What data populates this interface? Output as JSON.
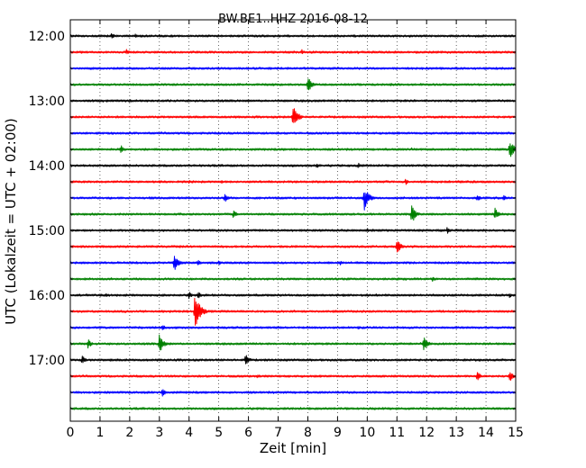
{
  "chart_data": {
    "type": "line",
    "title": "BW.BE1..HHZ 2016-08-12",
    "xlabel": "Zeit  [min]",
    "ylabel": "UTC (Lokalzeit = UTC + 02:00)",
    "xlim": [
      0,
      15
    ],
    "xticks": [
      "0",
      "1",
      "2",
      "3",
      "4",
      "5",
      "6",
      "7",
      "8",
      "9",
      "10",
      "11",
      "12",
      "13",
      "14",
      "15"
    ],
    "yticks": [
      "12:00",
      "13:00",
      "14:00",
      "15:00",
      "16:00",
      "17:00"
    ],
    "grid": "vertical dotted",
    "trace_colors": [
      "#000000",
      "#ff0000",
      "#0000ff",
      "#008000"
    ],
    "traces": [
      {
        "start": "12:00",
        "events": [
          {
            "x": 1.4,
            "amp": 0.4
          },
          {
            "x": 2.2,
            "amp": 0.25
          },
          {
            "x": 3.0,
            "amp": 0.2
          },
          {
            "x": 8.9,
            "amp": 0.2
          }
        ]
      },
      {
        "start": "12:15",
        "events": [
          {
            "x": 1.9,
            "amp": 0.35
          },
          {
            "x": 7.8,
            "amp": 0.3
          },
          {
            "x": 9.7,
            "amp": 0.2
          }
        ]
      },
      {
        "start": "12:30",
        "events": []
      },
      {
        "start": "12:45",
        "events": [
          {
            "x": 8.0,
            "amp": 1.0
          },
          {
            "x": 10.8,
            "amp": 0.2
          }
        ]
      },
      {
        "start": "13:00",
        "events": []
      },
      {
        "start": "13:15",
        "events": [
          {
            "x": 7.5,
            "amp": 1.4
          }
        ]
      },
      {
        "start": "13:30",
        "events": [
          {
            "x": 6.2,
            "amp": 0.15
          }
        ]
      },
      {
        "start": "13:45",
        "events": [
          {
            "x": 1.7,
            "amp": 0.55
          },
          {
            "x": 11.5,
            "amp": 0.2
          },
          {
            "x": 14.8,
            "amp": 1.2
          }
        ]
      },
      {
        "start": "14:00",
        "events": [
          {
            "x": 8.3,
            "amp": 0.35
          },
          {
            "x": 9.7,
            "amp": 0.3
          }
        ]
      },
      {
        "start": "14:15",
        "events": [
          {
            "x": 4.0,
            "amp": 0.2
          },
          {
            "x": 5.1,
            "amp": 0.25
          },
          {
            "x": 11.3,
            "amp": 0.35
          }
        ]
      },
      {
        "start": "14:30",
        "events": [
          {
            "x": 5.2,
            "amp": 0.55
          },
          {
            "x": 9.9,
            "amp": 1.4
          },
          {
            "x": 13.7,
            "amp": 0.45
          },
          {
            "x": 14.6,
            "amp": 0.35
          }
        ]
      },
      {
        "start": "14:45",
        "events": [
          {
            "x": 5.5,
            "amp": 0.55
          },
          {
            "x": 11.5,
            "amp": 1.1
          },
          {
            "x": 14.3,
            "amp": 0.75
          }
        ]
      },
      {
        "start": "15:00",
        "events": [
          {
            "x": 10.0,
            "amp": 0.25
          },
          {
            "x": 12.7,
            "amp": 0.4
          }
        ]
      },
      {
        "start": "15:15",
        "events": [
          {
            "x": 11.0,
            "amp": 0.9
          }
        ]
      },
      {
        "start": "15:30",
        "events": [
          {
            "x": 3.5,
            "amp": 1.1
          },
          {
            "x": 4.3,
            "amp": 0.35
          },
          {
            "x": 5.0,
            "amp": 0.3
          },
          {
            "x": 9.1,
            "amp": 0.25
          }
        ]
      },
      {
        "start": "15:45",
        "events": [
          {
            "x": 12.2,
            "amp": 0.35
          }
        ]
      },
      {
        "start": "16:00",
        "events": [
          {
            "x": 1.2,
            "amp": 0.25
          },
          {
            "x": 4.0,
            "amp": 0.4
          },
          {
            "x": 4.3,
            "amp": 0.45
          },
          {
            "x": 14.8,
            "amp": 0.3
          }
        ]
      },
      {
        "start": "16:15",
        "events": [
          {
            "x": 4.2,
            "amp": 1.9
          }
        ]
      },
      {
        "start": "16:30",
        "events": [
          {
            "x": 3.1,
            "amp": 0.4
          },
          {
            "x": 9.7,
            "amp": 0.2
          },
          {
            "x": 13.2,
            "amp": 0.2
          }
        ]
      },
      {
        "start": "16:45",
        "events": [
          {
            "x": 0.6,
            "amp": 0.55
          },
          {
            "x": 3.0,
            "amp": 1.1
          },
          {
            "x": 11.9,
            "amp": 0.95
          }
        ]
      },
      {
        "start": "17:00",
        "events": [
          {
            "x": 0.4,
            "amp": 0.55
          },
          {
            "x": 5.9,
            "amp": 0.75
          }
        ]
      },
      {
        "start": "17:15",
        "events": [
          {
            "x": 6.3,
            "amp": 0.25
          },
          {
            "x": 13.7,
            "amp": 0.6
          },
          {
            "x": 14.8,
            "amp": 0.65
          }
        ]
      },
      {
        "start": "17:30",
        "events": [
          {
            "x": 3.1,
            "amp": 0.55
          }
        ]
      },
      {
        "start": "17:45",
        "events": [
          {
            "x": 6.3,
            "amp": 0.2
          },
          {
            "x": 9.7,
            "amp": 0.15
          }
        ]
      }
    ]
  }
}
